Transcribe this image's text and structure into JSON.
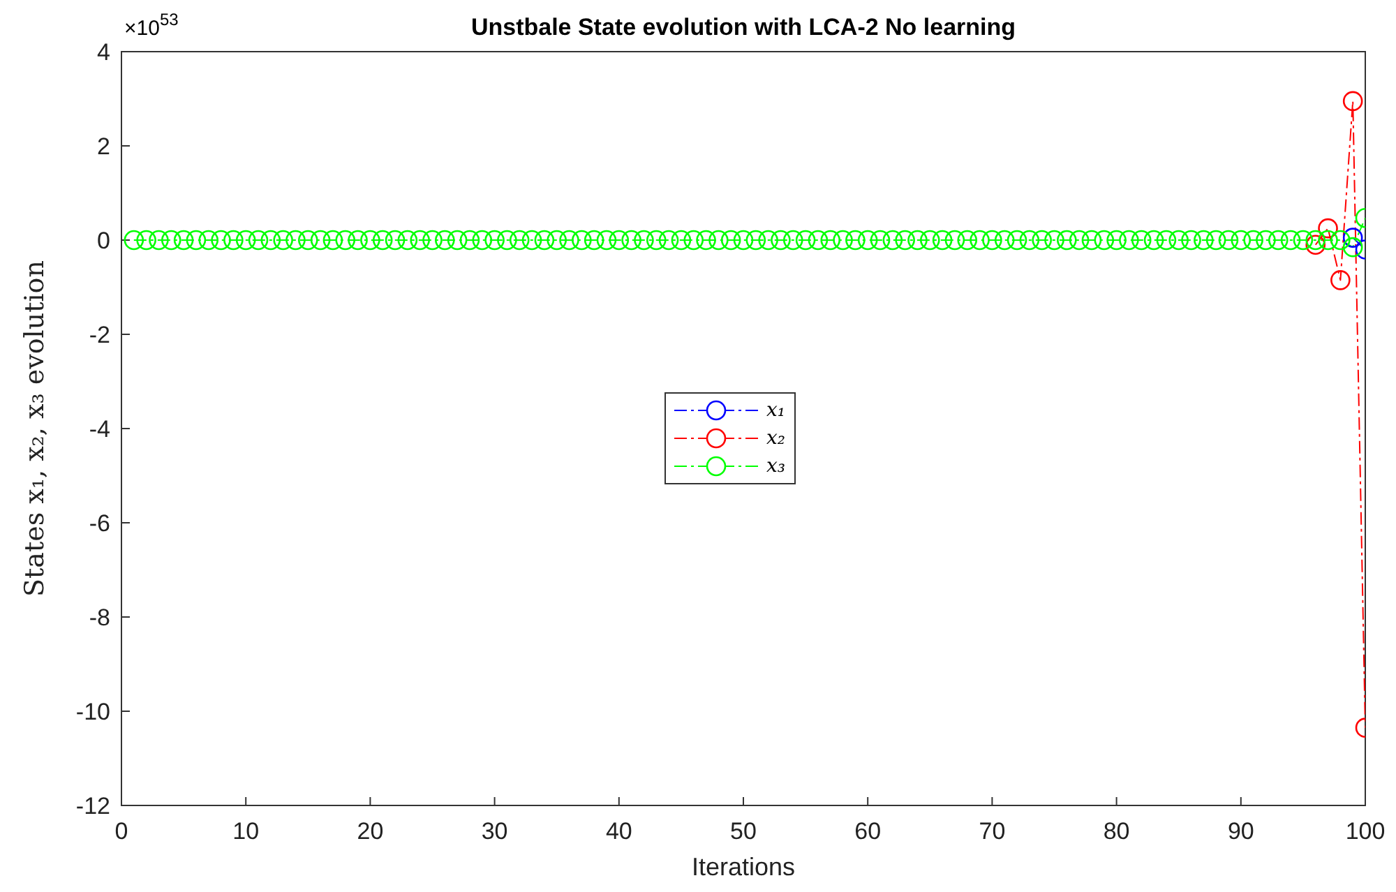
{
  "chart_data": {
    "type": "line",
    "title": "Unstbale State evolution with LCA-2 No learning",
    "xlabel": "Iterations",
    "ylabel": "States x₁, x₂, x₃ evolution",
    "annotations": [
      "×10$^{53}$"
    ],
    "x": [
      1,
      2,
      3,
      4,
      5,
      6,
      7,
      8,
      9,
      10,
      11,
      12,
      13,
      14,
      15,
      16,
      17,
      18,
      19,
      20,
      21,
      22,
      23,
      24,
      25,
      26,
      27,
      28,
      29,
      30,
      31,
      32,
      33,
      34,
      35,
      36,
      37,
      38,
      39,
      40,
      41,
      42,
      43,
      44,
      45,
      46,
      47,
      48,
      49,
      50,
      51,
      52,
      53,
      54,
      55,
      56,
      57,
      58,
      59,
      60,
      61,
      62,
      63,
      64,
      65,
      66,
      67,
      68,
      69,
      70,
      71,
      72,
      73,
      74,
      75,
      76,
      77,
      78,
      79,
      80,
      81,
      82,
      83,
      84,
      85,
      86,
      87,
      88,
      89,
      90,
      91,
      92,
      93,
      94,
      95,
      96,
      97,
      98,
      99,
      100
    ],
    "series": [
      {
        "name": "x₁",
        "color": "#0000ff",
        "values": [
          null,
          null,
          null,
          null,
          null,
          null,
          null,
          null,
          null,
          null,
          null,
          null,
          null,
          null,
          null,
          null,
          null,
          null,
          null,
          null,
          null,
          null,
          null,
          null,
          null,
          null,
          null,
          null,
          null,
          null,
          null,
          null,
          null,
          null,
          null,
          null,
          null,
          null,
          null,
          null,
          null,
          null,
          null,
          null,
          null,
          null,
          null,
          null,
          null,
          null,
          null,
          null,
          null,
          null,
          null,
          null,
          null,
          null,
          null,
          null,
          null,
          null,
          null,
          null,
          null,
          null,
          null,
          null,
          null,
          null,
          null,
          null,
          null,
          null,
          null,
          null,
          null,
          null,
          null,
          null,
          null,
          null,
          null,
          null,
          null,
          null,
          null,
          null,
          null,
          null,
          null,
          null,
          null,
          null,
          null,
          null,
          null,
          null,
          0.05,
          -0.2
        ]
      },
      {
        "name": "x₂",
        "color": "#ff0000",
        "values": [
          null,
          null,
          null,
          null,
          null,
          null,
          null,
          null,
          null,
          null,
          null,
          null,
          null,
          null,
          null,
          null,
          null,
          null,
          null,
          null,
          null,
          null,
          null,
          null,
          null,
          null,
          null,
          null,
          null,
          null,
          null,
          null,
          null,
          null,
          null,
          null,
          null,
          null,
          null,
          null,
          null,
          null,
          null,
          null,
          null,
          null,
          null,
          null,
          null,
          null,
          null,
          null,
          null,
          null,
          null,
          null,
          null,
          null,
          null,
          null,
          null,
          null,
          null,
          null,
          null,
          null,
          null,
          null,
          null,
          null,
          null,
          null,
          null,
          null,
          null,
          null,
          null,
          null,
          null,
          null,
          null,
          null,
          null,
          null,
          null,
          null,
          null,
          null,
          null,
          null,
          null,
          null,
          null,
          null,
          null,
          -0.1,
          0.25,
          -0.85,
          2.95,
          -10.35
        ]
      },
      {
        "name": "x₃",
        "color": "#00ff00",
        "values": [
          0,
          0,
          0,
          0,
          0,
          0,
          0,
          0,
          0,
          0,
          0,
          0,
          0,
          0,
          0,
          0,
          0,
          0,
          0,
          0,
          0,
          0,
          0,
          0,
          0,
          0,
          0,
          0,
          0,
          0,
          0,
          0,
          0,
          0,
          0,
          0,
          0,
          0,
          0,
          0,
          0,
          0,
          0,
          0,
          0,
          0,
          0,
          0,
          0,
          0,
          0,
          0,
          0,
          0,
          0,
          0,
          0,
          0,
          0,
          0,
          0,
          0,
          0,
          0,
          0,
          0,
          0,
          0,
          0,
          0,
          0,
          0,
          0,
          0,
          0,
          0,
          0,
          0,
          0,
          0,
          0,
          0,
          0,
          0,
          0,
          0,
          0,
          0,
          0,
          0,
          0,
          0,
          0,
          0,
          0,
          0,
          0,
          0,
          -0.15,
          0.47
        ]
      }
    ],
    "xlim": [
      0,
      100
    ],
    "xticks": [
      0,
      10,
      20,
      30,
      40,
      50,
      60,
      70,
      80,
      90,
      100
    ],
    "ylim": [
      -12,
      4
    ],
    "yticks": [
      -12,
      -10,
      -8,
      -6,
      -4,
      -2,
      0,
      2,
      4
    ],
    "grid": false,
    "legend": "center",
    "marker": "circle",
    "line_style": "dashdot"
  }
}
